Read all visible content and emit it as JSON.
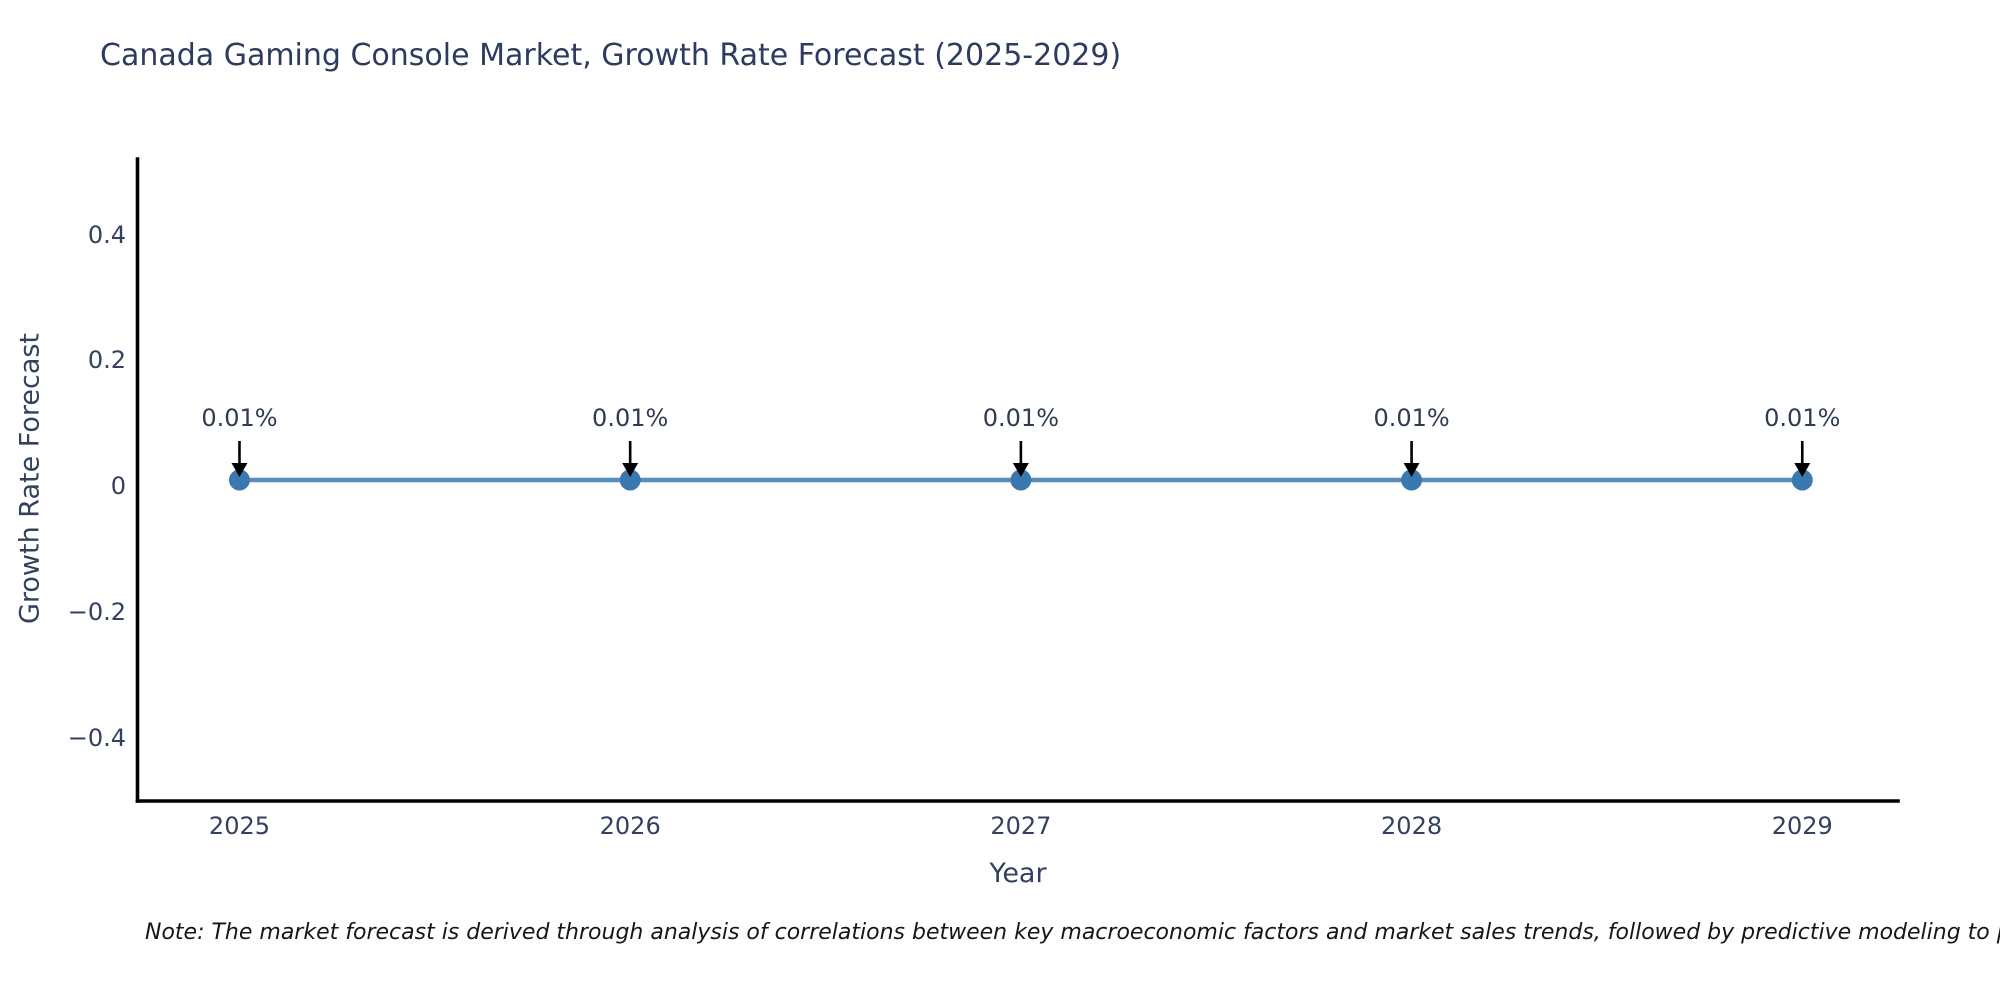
{
  "chart_data": {
    "type": "line",
    "title": "Canada Gaming Console Market, Growth Rate Forecast (2025-2029)",
    "xlabel": "Year",
    "ylabel": "Growth Rate Forecast",
    "x": [
      2025,
      2026,
      2027,
      2028,
      2029
    ],
    "series": [
      {
        "name": "Growth Rate Forecast",
        "values": [
          0.01,
          0.01,
          0.01,
          0.01,
          0.01
        ],
        "unit": "%",
        "line_color": "#4682b4",
        "marker_color": "#3b78b0"
      }
    ],
    "annotations": [
      "0.01%",
      "0.01%",
      "0.01%",
      "0.01%",
      "0.01%"
    ],
    "annotation_arrow_color": "#000000",
    "xticks": [
      {
        "value": 2025,
        "label": "2025"
      },
      {
        "value": 2026,
        "label": "2026"
      },
      {
        "value": 2027,
        "label": "2027"
      },
      {
        "value": 2028,
        "label": "2028"
      },
      {
        "value": 2029,
        "label": "2029"
      }
    ],
    "yticks": [
      {
        "value": 0.4,
        "label": "0.4"
      },
      {
        "value": 0.2,
        "label": "0.2"
      },
      {
        "value": 0,
        "label": "0"
      },
      {
        "value": -0.2,
        "label": "−0.2"
      },
      {
        "value": -0.4,
        "label": "−0.4"
      }
    ],
    "xlim": [
      2024.739,
      2029.245
    ],
    "ylim": [
      -0.5,
      0.52
    ],
    "grid": false,
    "legend": "none",
    "axis_color": "#000000",
    "background_color": "#ffffff",
    "note": "Note: The market forecast is derived through analysis of correlations between key macroeconomic factors and market sales trends, followed by predictive modeling to project future sa"
  }
}
